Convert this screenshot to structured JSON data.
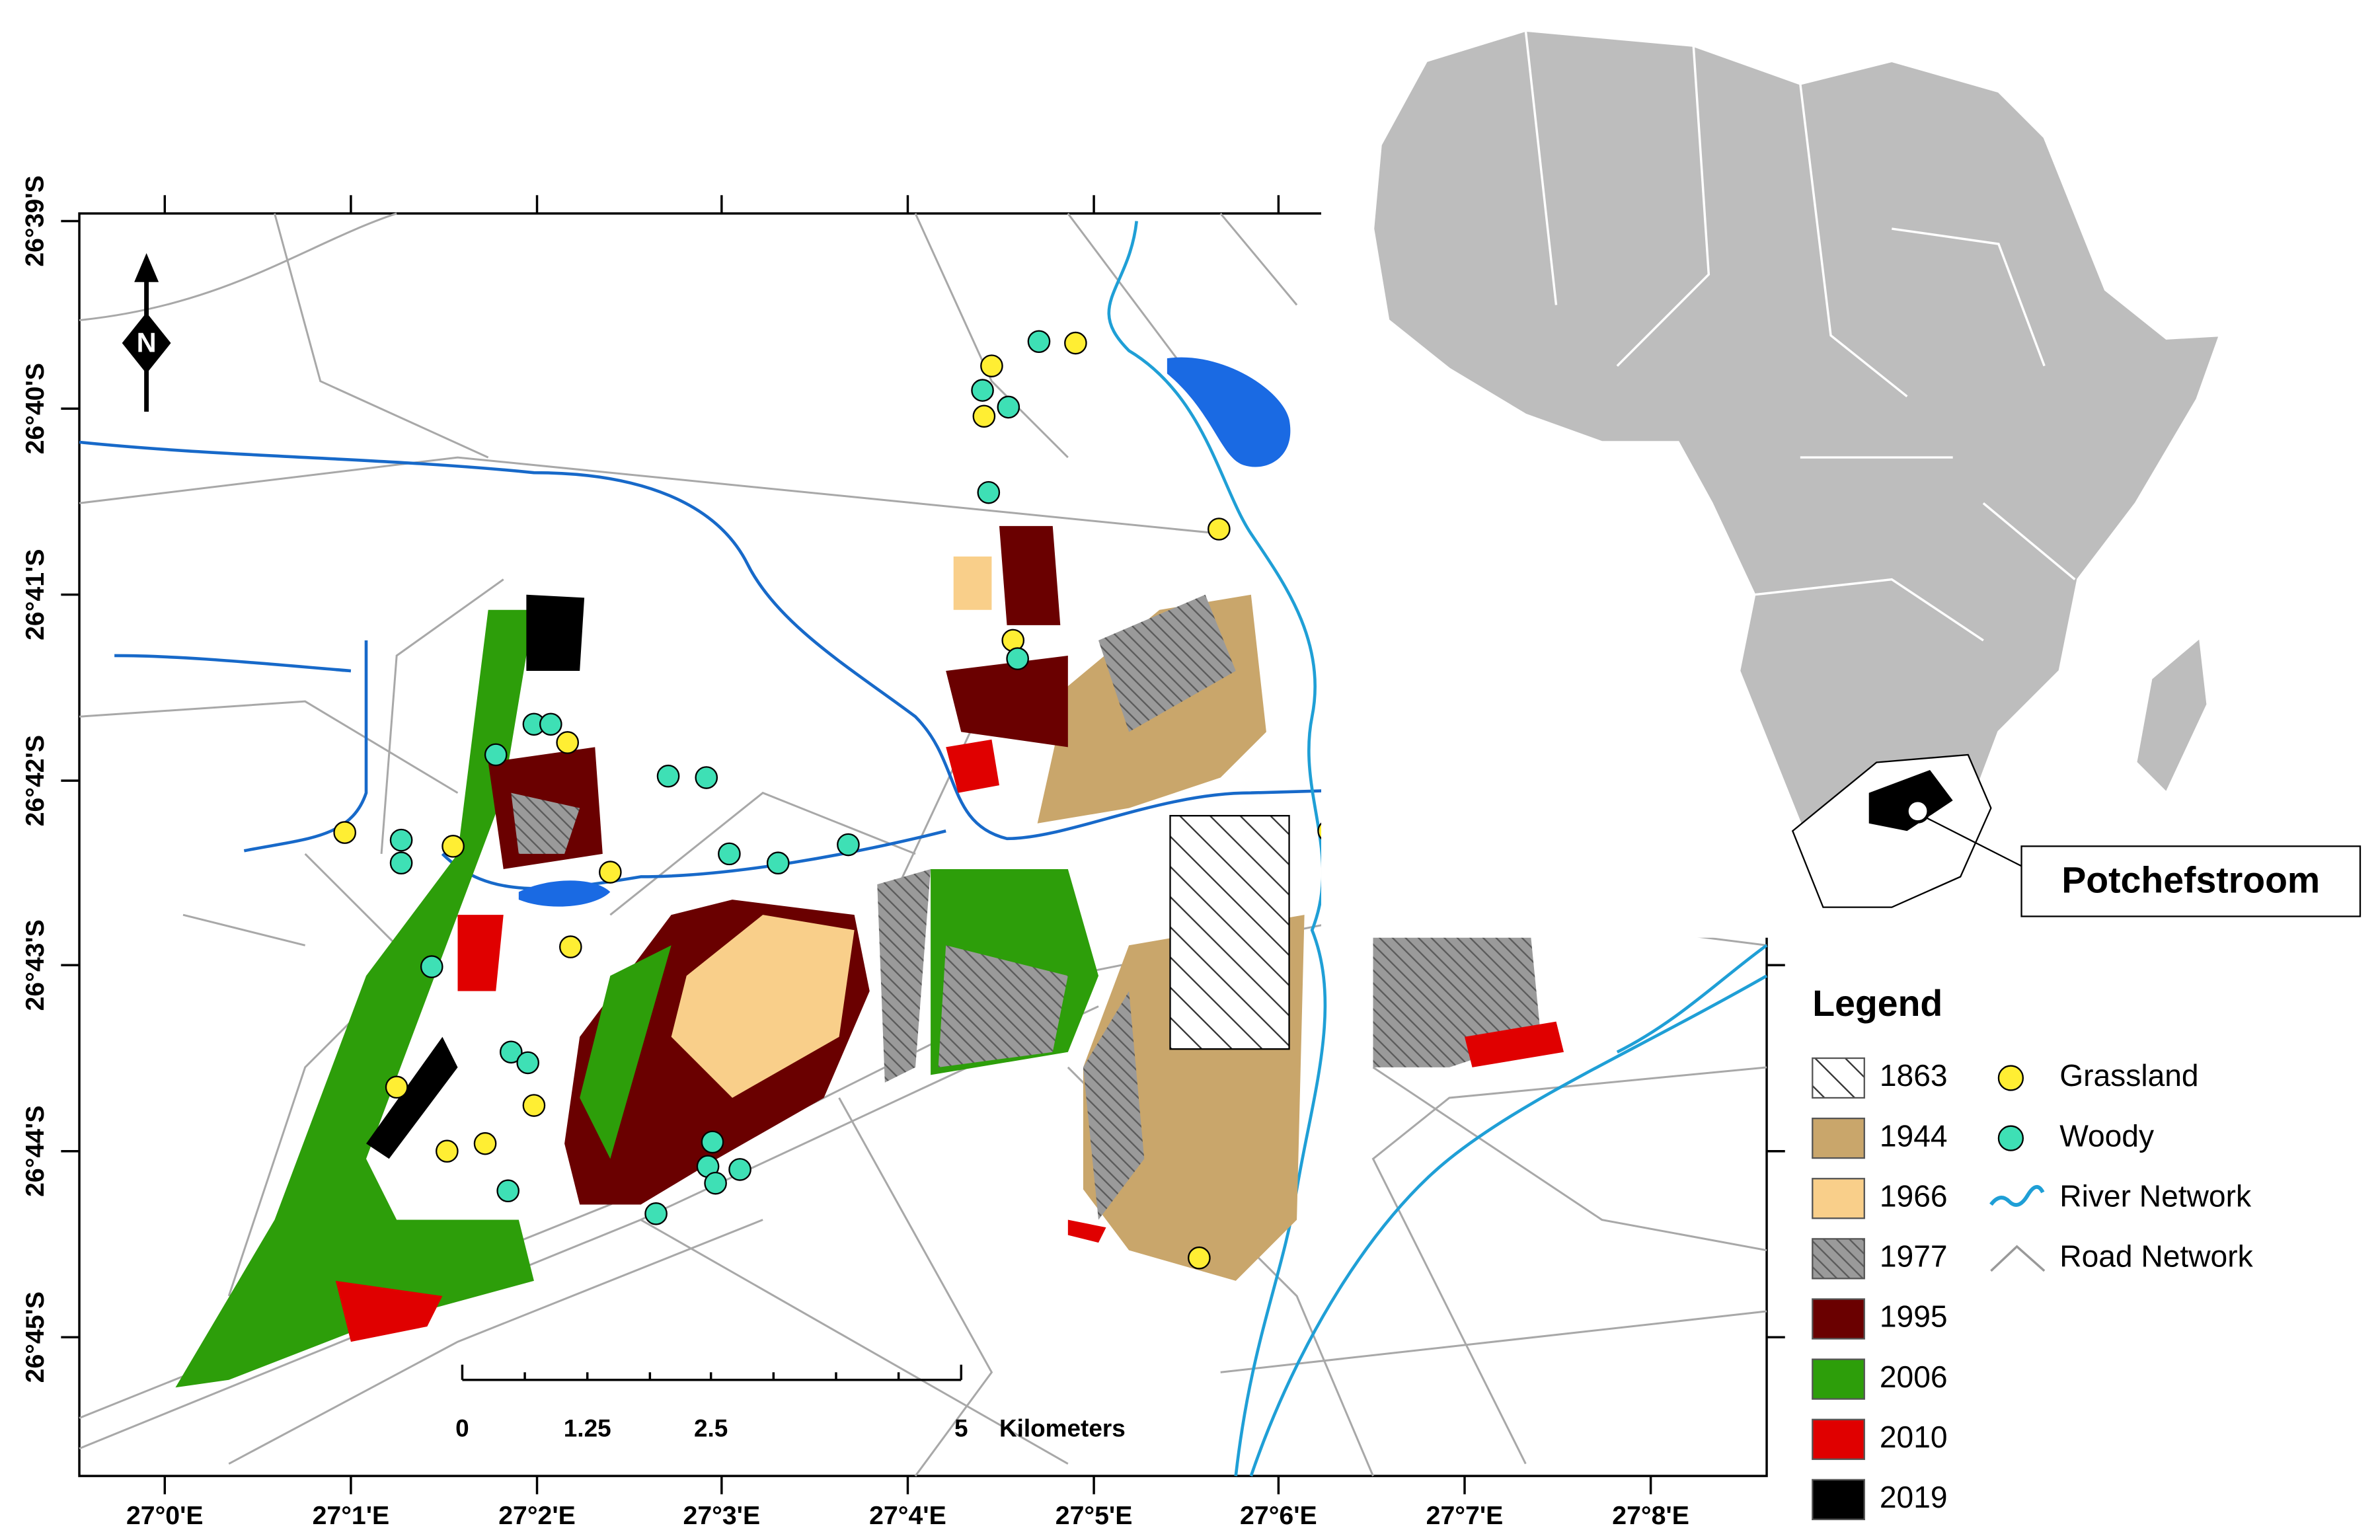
{
  "map": {
    "lat_labels": [
      "26°39'S",
      "26°40'S",
      "26°41'S",
      "26°42'S",
      "26°43'S",
      "26°44'S",
      "26°45'S"
    ],
    "lon_labels": [
      "27°0'E",
      "27°1'E",
      "27°2'E",
      "27°3'E",
      "27°4'E",
      "27°5'E",
      "27°6'E",
      "27°7'E",
      "27°8'E"
    ],
    "north_label": "N",
    "scale_bar": {
      "labels": [
        "0",
        "1.25",
        "2.5",
        "5"
      ],
      "unit": "Kilometers"
    },
    "legend": {
      "title": "Legend",
      "land_use": [
        "1863",
        "1944",
        "1966",
        "1977",
        "1995",
        "2006",
        "2010",
        "2019"
      ],
      "features": [
        "Grassland",
        "Woody",
        "River Network",
        "Road Network"
      ]
    },
    "inset_label": "Potchefstroom"
  }
}
